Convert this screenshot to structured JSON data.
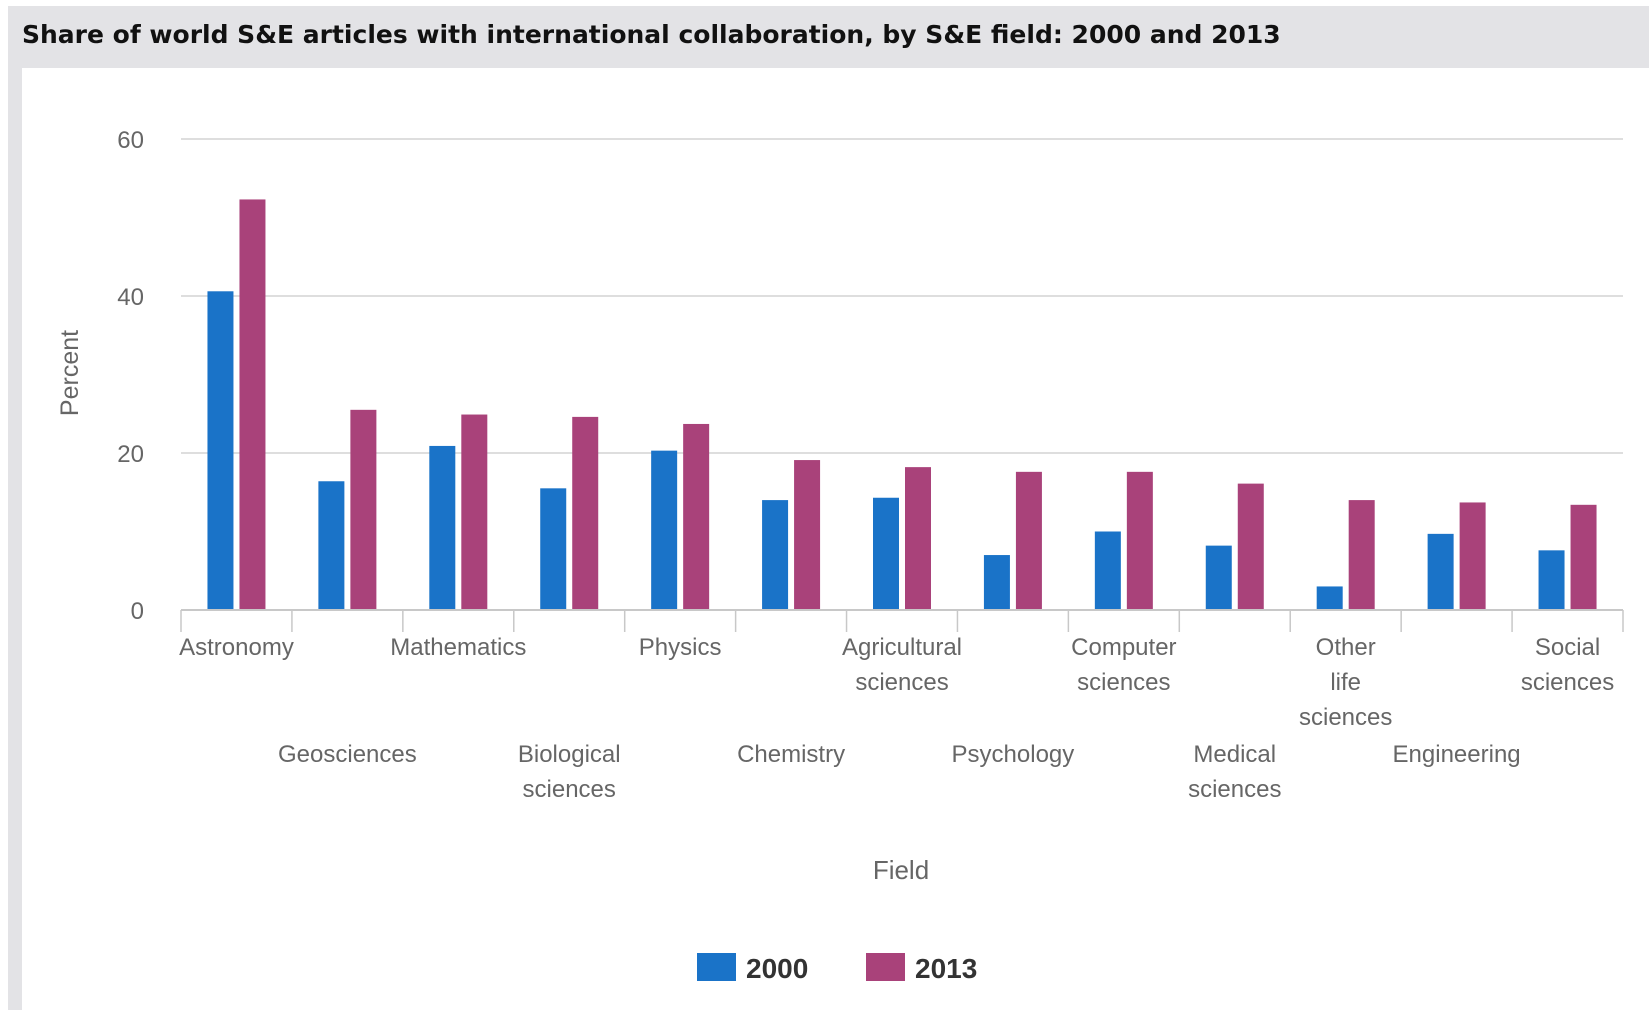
{
  "chart_data": {
    "type": "bar",
    "title": "Share of world S&E articles with international collaboration, by S&E field: 2000 and 2013",
    "xlabel": "Field",
    "ylabel": "Percent",
    "ylim": [
      0,
      60
    ],
    "yticks": [
      "0",
      "20",
      "40",
      "60"
    ],
    "grid": true,
    "legend_position": "bottom",
    "categories": [
      "Astronomy",
      "Geosciences",
      "Mathematics",
      "Biological sciences",
      "Physics",
      "Chemistry",
      "Agricultural sciences",
      "Psychology",
      "Computer sciences",
      "Medical sciences",
      "Other life sciences",
      "Engineering",
      "Social sciences"
    ],
    "category_label_lines": [
      [
        "Astronomy"
      ],
      [
        "Geosciences"
      ],
      [
        "Mathematics"
      ],
      [
        "Biological",
        "sciences"
      ],
      [
        "Physics"
      ],
      [
        "Chemistry"
      ],
      [
        "Agricultural",
        "sciences"
      ],
      [
        "Psychology"
      ],
      [
        "Computer",
        "sciences"
      ],
      [
        "Medical",
        "sciences"
      ],
      [
        "Other",
        "life",
        "sciences"
      ],
      [
        "Engineering"
      ],
      [
        "Social",
        "sciences"
      ]
    ],
    "series": [
      {
        "name": "2000",
        "color": "#1a73c8",
        "values": [
          40.6,
          16.4,
          20.9,
          15.5,
          20.3,
          14.0,
          14.3,
          7.0,
          10.0,
          8.2,
          3.0,
          9.7,
          7.6
        ]
      },
      {
        "name": "2013",
        "color": "#a9427a",
        "values": [
          52.3,
          25.5,
          24.9,
          24.6,
          23.7,
          19.1,
          18.2,
          17.6,
          17.6,
          16.1,
          14.0,
          13.7,
          13.4
        ]
      }
    ]
  }
}
